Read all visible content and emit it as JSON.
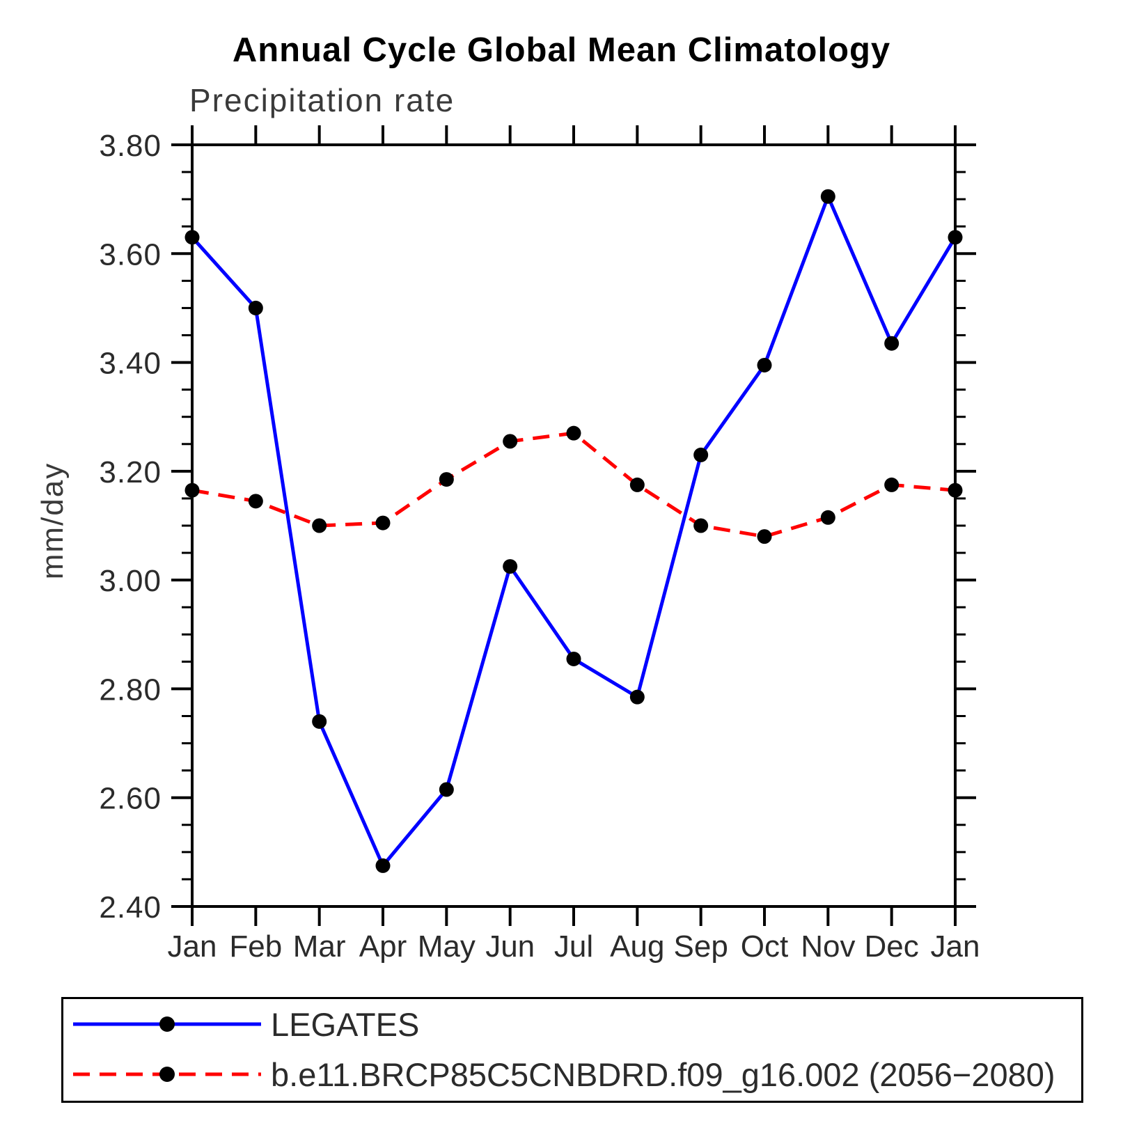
{
  "title": "Annual Cycle Global Mean Climatology",
  "subtitle": "Precipitation rate",
  "ylabel": "mm/day",
  "chart_data": {
    "type": "line",
    "title": "Annual Cycle Global Mean Climatology",
    "subtitle": "Precipitation rate",
    "xlabel": "",
    "ylabel": "mm/day",
    "categories": [
      "Jan",
      "Feb",
      "Mar",
      "Apr",
      "May",
      "Jun",
      "Jul",
      "Aug",
      "Sep",
      "Oct",
      "Nov",
      "Dec",
      "Jan"
    ],
    "ylim": [
      2.4,
      3.8
    ],
    "ytick_major": 0.2,
    "ytick_minor": 0.05,
    "ytick_labels": [
      "2.40",
      "2.60",
      "2.80",
      "3.00",
      "3.20",
      "3.40",
      "3.60",
      "3.80"
    ],
    "grid": false,
    "legend_position": "bottom-box",
    "axis_color": "#000000",
    "label_color": "#2b2b2b",
    "series": [
      {
        "name": "LEGATES",
        "color": "#0000ff",
        "line_style": "solid",
        "marker": "filled-circle",
        "marker_color": "#000000",
        "values": [
          3.63,
          3.5,
          2.74,
          2.475,
          2.615,
          3.025,
          2.855,
          2.785,
          3.23,
          3.395,
          3.705,
          3.435,
          3.63
        ]
      },
      {
        "name": "b.e11.BRCP85C5CNBDRD.f09_g16.002 (2056−2080)",
        "color": "#ff0000",
        "line_style": "dashed",
        "marker": "filled-circle",
        "marker_color": "#000000",
        "values": [
          3.165,
          3.145,
          3.1,
          3.105,
          3.185,
          3.255,
          3.27,
          3.175,
          3.1,
          3.08,
          3.115,
          3.175,
          3.165
        ]
      }
    ]
  }
}
